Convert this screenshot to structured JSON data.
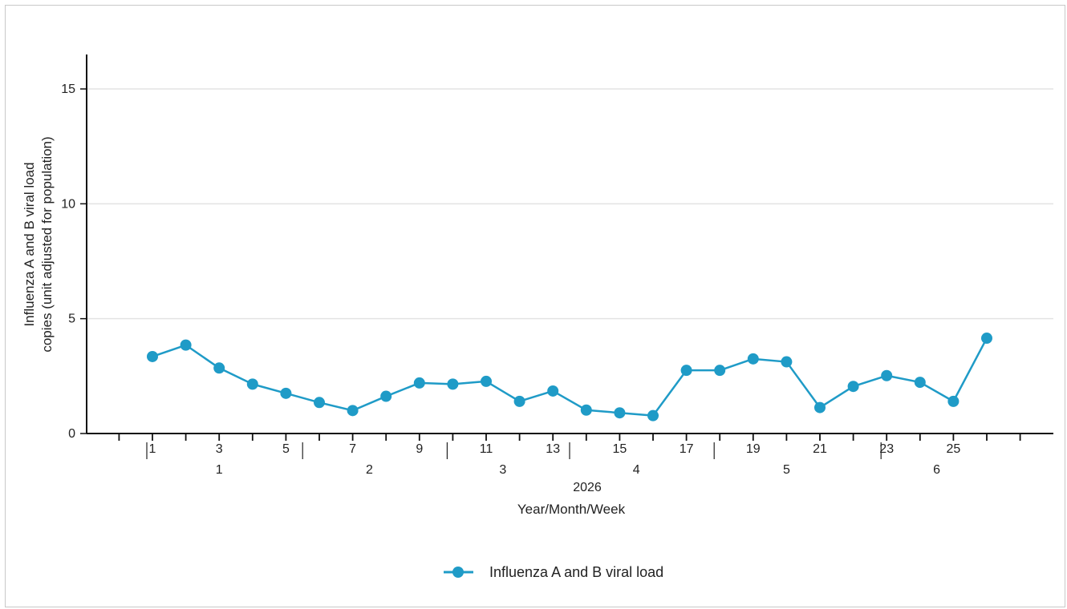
{
  "chart_data": {
    "type": "line",
    "ylabel_lines": [
      "Influenza A and B viral load",
      "copies (unit adjusted for population)"
    ],
    "xlabel_year": "2026",
    "xlabel": "Year/Month/Week",
    "ylim": [
      0,
      16.5
    ],
    "yticks": [
      0,
      5,
      10,
      15
    ],
    "grid": true,
    "legend_position": "bottom-center",
    "color": "#1f9bc7",
    "x": [
      1,
      2,
      3,
      4,
      5,
      6,
      7,
      8,
      9,
      10,
      11,
      12,
      13,
      14,
      15,
      16,
      17,
      18,
      19,
      20,
      21,
      22,
      23,
      24,
      25,
      26
    ],
    "week_tick_labels": [
      {
        "week": 1,
        "label": "1"
      },
      {
        "week": 3,
        "label": "3"
      },
      {
        "week": 5,
        "label": "5"
      },
      {
        "week": 7,
        "label": "7"
      },
      {
        "week": 9,
        "label": "9"
      },
      {
        "week": 11,
        "label": "11"
      },
      {
        "week": 13,
        "label": "13"
      },
      {
        "week": 15,
        "label": "15"
      },
      {
        "week": 17,
        "label": "17"
      },
      {
        "week": 19,
        "label": "19"
      },
      {
        "week": 21,
        "label": "21"
      },
      {
        "week": 23,
        "label": "23"
      },
      {
        "week": 25,
        "label": "25"
      }
    ],
    "months": [
      {
        "label": "1",
        "start_week": 1,
        "end_week": 5
      },
      {
        "label": "2",
        "start_week": 6,
        "end_week": 9
      },
      {
        "label": "3",
        "start_week": 10,
        "end_week": 13
      },
      {
        "label": "4",
        "start_week": 14,
        "end_week": 17
      },
      {
        "label": "5",
        "start_week": 18,
        "end_week": 22
      },
      {
        "label": "6",
        "start_week": 23,
        "end_week": 26
      }
    ],
    "series": [
      {
        "name": "Influenza A and B viral load",
        "values": [
          3.35,
          3.85,
          2.85,
          2.15,
          1.75,
          1.35,
          1.0,
          1.62,
          2.2,
          2.15,
          2.27,
          1.4,
          1.85,
          1.02,
          0.9,
          0.78,
          2.75,
          2.75,
          3.25,
          3.12,
          1.13,
          2.05,
          2.52,
          2.23,
          1.4,
          4.15
        ]
      }
    ]
  }
}
